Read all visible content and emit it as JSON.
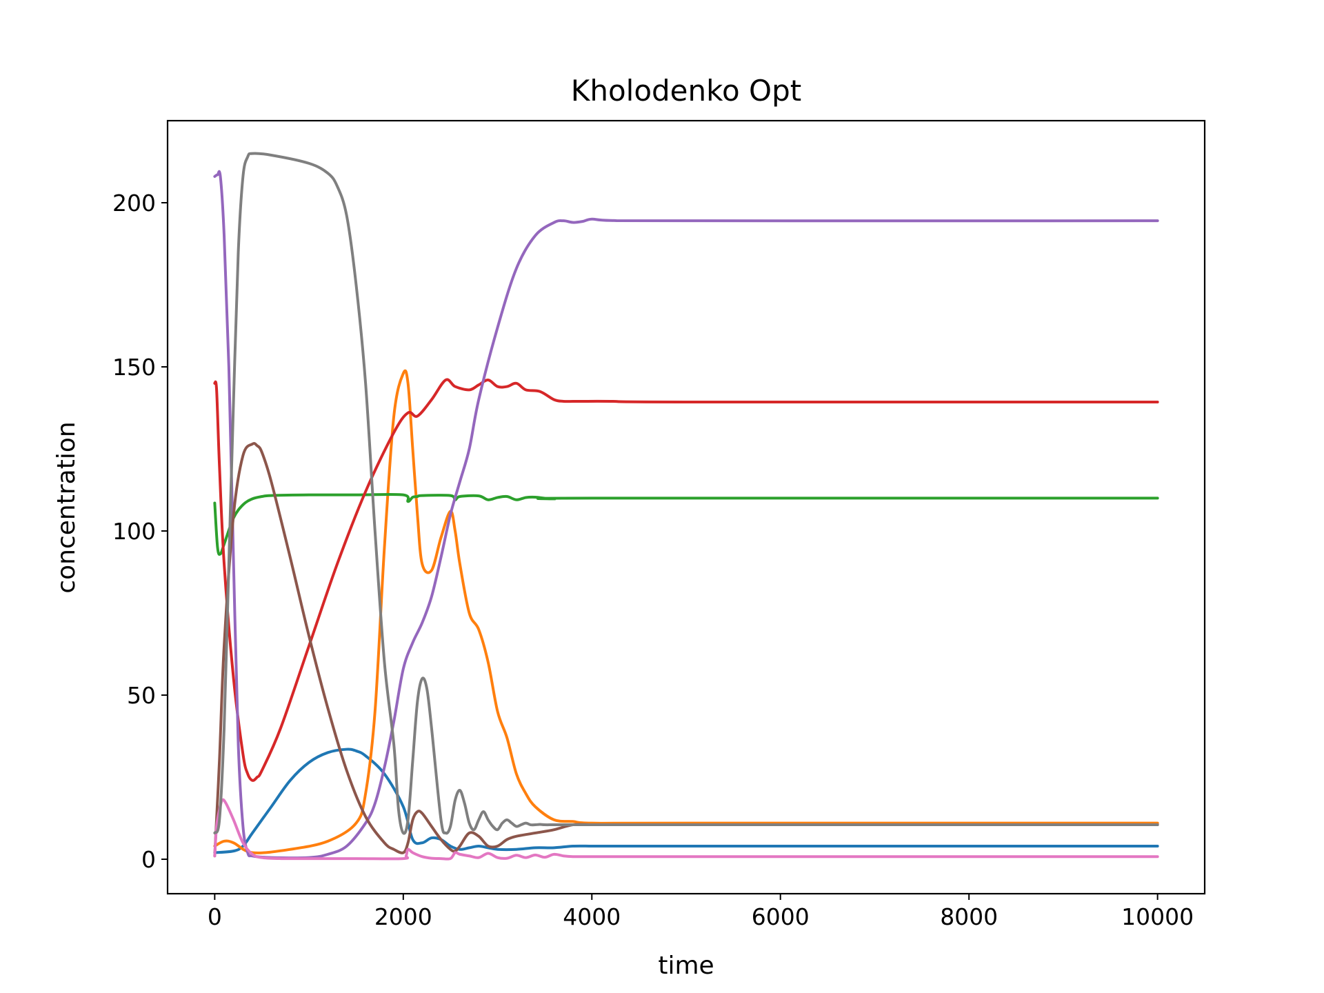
{
  "chart_data": {
    "type": "line",
    "title": "Kholodenko Opt",
    "xlabel": "time",
    "ylabel": "concentration",
    "xlim": [
      -500,
      10500
    ],
    "ylim": [
      -10.5,
      225
    ],
    "xticks": [
      0,
      2000,
      4000,
      6000,
      8000,
      10000
    ],
    "yticks": [
      0,
      50,
      100,
      150,
      200
    ],
    "grid": false,
    "legend": "none",
    "series": [
      {
        "name": "series-0",
        "color": "#1f77b4",
        "x": [
          0,
          200,
          300,
          400,
          600,
          800,
          1000,
          1200,
          1400,
          1500,
          1600,
          1800,
          2000,
          2100,
          2200,
          2300,
          2400,
          2500,
          2600,
          2700,
          2800,
          2900,
          3000,
          3200,
          3400,
          3600,
          3800,
          4000,
          4200,
          5000,
          10000
        ],
        "y": [
          2,
          2.5,
          4,
          8,
          16,
          24,
          29.5,
          32.5,
          33.5,
          33,
          31.5,
          26,
          16,
          6,
          5,
          6.5,
          6,
          4,
          3,
          3.5,
          4,
          3.5,
          3,
          3,
          3.5,
          3.5,
          4,
          4,
          4,
          4,
          4
        ]
      },
      {
        "name": "series-1",
        "color": "#ff7f0e",
        "x": [
          0,
          100,
          200,
          400,
          800,
          1200,
          1500,
          1600,
          1700,
          1800,
          1900,
          2000,
          2050,
          2100,
          2150,
          2200,
          2300,
          2400,
          2500,
          2550,
          2600,
          2700,
          2800,
          2900,
          3000,
          3100,
          3200,
          3300,
          3400,
          3600,
          3800,
          4000,
          5000,
          10000
        ],
        "y": [
          4,
          5.5,
          5,
          2,
          3,
          5.5,
          11,
          20,
          45,
          95,
          135,
          148,
          145,
          125,
          105,
          90,
          88,
          98,
          106,
          100,
          90,
          75,
          70,
          60,
          45,
          37,
          26,
          20,
          16,
          12,
          11.5,
          11,
          11,
          11
        ]
      },
      {
        "name": "series-2",
        "color": "#2ca02c",
        "x": [
          0,
          30,
          60,
          100,
          200,
          300,
          400,
          500,
          600,
          1000,
          1500,
          2000,
          2050,
          2100,
          2150,
          2200,
          2500,
          2550,
          2600,
          2800,
          2900,
          3000,
          3100,
          3200,
          3300,
          3400,
          3600,
          4000,
          10000
        ],
        "y": [
          108.5,
          95,
          93,
          96,
          104,
          108,
          109.8,
          110.5,
          110.8,
          111,
          111,
          111,
          109,
          110.3,
          110.5,
          110.8,
          110.8,
          109.5,
          110.5,
          110.7,
          109.5,
          110.2,
          110.5,
          109.5,
          110.2,
          110.3,
          109.8,
          110,
          110
        ]
      },
      {
        "name": "series-3",
        "color": "#d62728",
        "x": [
          0,
          20,
          50,
          100,
          200,
          300,
          350,
          400,
          450,
          500,
          700,
          1000,
          1300,
          1600,
          1900,
          2050,
          2150,
          2300,
          2450,
          2550,
          2700,
          2800,
          2900,
          3000,
          3100,
          3200,
          3300,
          3450,
          3600,
          3700,
          3800,
          3900,
          4200,
          5000,
          10000
        ],
        "y": [
          145,
          143,
          120,
          90,
          55,
          32,
          26,
          24,
          25,
          27,
          40,
          65,
          90,
          112,
          130,
          136,
          135,
          140,
          146,
          144,
          143,
          144.5,
          146,
          144,
          144,
          145,
          143,
          142.5,
          140,
          139.5,
          139.5,
          139.5,
          139.5,
          139.3,
          139.3
        ]
      },
      {
        "name": "series-4",
        "color": "#9467bd",
        "x": [
          0,
          30,
          60,
          100,
          150,
          200,
          250,
          300,
          350,
          400,
          600,
          1000,
          1200,
          1400,
          1600,
          1700,
          1800,
          1900,
          2000,
          2100,
          2200,
          2300,
          2400,
          2500,
          2600,
          2700,
          2800,
          3000,
          3200,
          3400,
          3600,
          3700,
          3800,
          3900,
          4000,
          4200,
          5000,
          10000
        ],
        "y": [
          208,
          208.5,
          208,
          190,
          150,
          90,
          35,
          10,
          2,
          1,
          0.5,
          0.5,
          1.5,
          4,
          11,
          17,
          28,
          42,
          58,
          66,
          72,
          80,
          92,
          105,
          115,
          125,
          140,
          162,
          180,
          190,
          194,
          194.5,
          194,
          194.3,
          195,
          194.6,
          194.5,
          194.5
        ]
      },
      {
        "name": "series-5",
        "color": "#8c564b",
        "x": [
          0,
          50,
          100,
          200,
          300,
          400,
          450,
          500,
          600,
          800,
          1000,
          1200,
          1400,
          1600,
          1800,
          1900,
          2000,
          2050,
          2100,
          2150,
          2200,
          2300,
          2400,
          2500,
          2550,
          2600,
          2700,
          2800,
          2900,
          3000,
          3100,
          3200,
          3400,
          3600,
          3800,
          4000,
          4200,
          5000,
          10000
        ],
        "y": [
          1,
          30,
          65,
          105,
          123,
          126.5,
          126,
          124,
          115,
          92,
          68,
          46,
          27,
          13,
          5,
          3,
          2,
          5,
          12,
          14.5,
          14,
          10,
          6,
          3,
          2.5,
          4,
          8,
          7,
          4,
          4,
          6,
          7,
          8,
          9,
          10.5,
          10.5,
          10.5,
          10.5,
          10.5
        ]
      },
      {
        "name": "series-6",
        "color": "#e377c2",
        "x": [
          0,
          20,
          50,
          80,
          120,
          200,
          300,
          400,
          500,
          700,
          1000,
          1500,
          2000,
          2030,
          2050,
          2100,
          2200,
          2300,
          2400,
          2500,
          2550,
          2600,
          2700,
          2800,
          2900,
          3000,
          3100,
          3200,
          3300,
          3400,
          3500,
          3600,
          3700,
          3800,
          4000,
          5000,
          10000
        ],
        "y": [
          1,
          10,
          15,
          18,
          17,
          12,
          5,
          1.5,
          0.5,
          0.2,
          0.2,
          0.2,
          0.2,
          1,
          3,
          2,
          0.8,
          0.3,
          0.2,
          0.2,
          2,
          1.5,
          1,
          0.5,
          1.8,
          0.5,
          0.3,
          1.2,
          0.5,
          1.3,
          0.6,
          1.5,
          1,
          0.8,
          0.8,
          0.8,
          0.8
        ]
      },
      {
        "name": "series-7",
        "color": "#7f7f7f",
        "x": [
          0,
          50,
          100,
          150,
          200,
          250,
          300,
          350,
          400,
          600,
          1000,
          1200,
          1300,
          1400,
          1500,
          1600,
          1700,
          1800,
          1900,
          1950,
          2000,
          2050,
          2100,
          2150,
          2200,
          2250,
          2300,
          2400,
          2450,
          2500,
          2550,
          2600,
          2650,
          2700,
          2750,
          2800,
          2850,
          2900,
          2950,
          3000,
          3050,
          3100,
          3150,
          3200,
          3250,
          3300,
          3350,
          3400,
          3450,
          3500,
          3600,
          3800,
          4000,
          5000,
          10000
        ],
        "y": [
          8,
          12,
          40,
          90,
          140,
          185,
          208,
          214,
          215,
          214.5,
          212,
          209,
          205,
          196,
          175,
          145,
          100,
          60,
          35,
          15,
          8,
          12,
          30,
          48,
          55,
          52,
          40,
          12,
          8,
          10,
          18,
          21,
          17,
          11,
          9,
          12,
          14.5,
          12,
          10,
          9,
          11,
          12,
          11,
          10,
          10.5,
          11,
          10.5,
          10.5,
          10.6,
          10.5,
          10.5,
          10.5,
          10.5,
          10.5,
          10.5
        ]
      }
    ]
  }
}
